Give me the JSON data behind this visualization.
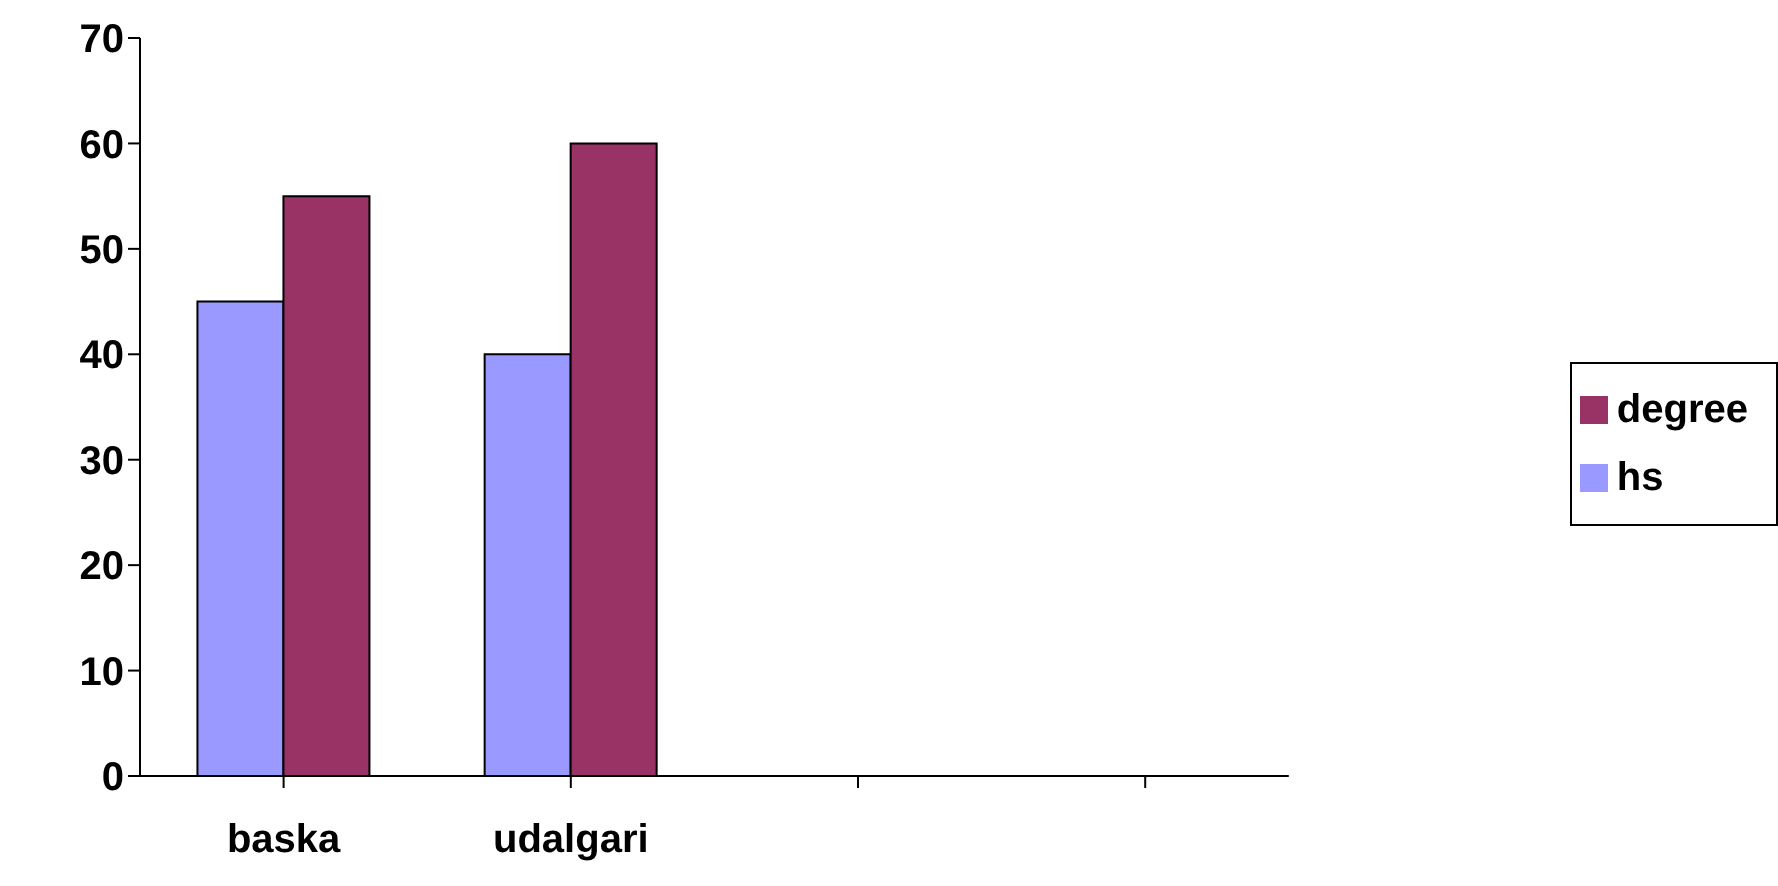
{
  "chart_data": {
    "type": "bar",
    "categories": [
      "baska",
      "udalgari",
      null,
      null
    ],
    "series": [
      {
        "name": "hs",
        "color": "#9999ff",
        "values": [
          45,
          40,
          null,
          null
        ]
      },
      {
        "name": "degree",
        "color": "#993366",
        "values": [
          55,
          60,
          null,
          null
        ]
      }
    ],
    "ylim": [
      0,
      70
    ],
    "yticks": [
      0,
      10,
      20,
      30,
      40,
      50,
      60,
      70
    ],
    "grid": false,
    "legend": "right"
  }
}
